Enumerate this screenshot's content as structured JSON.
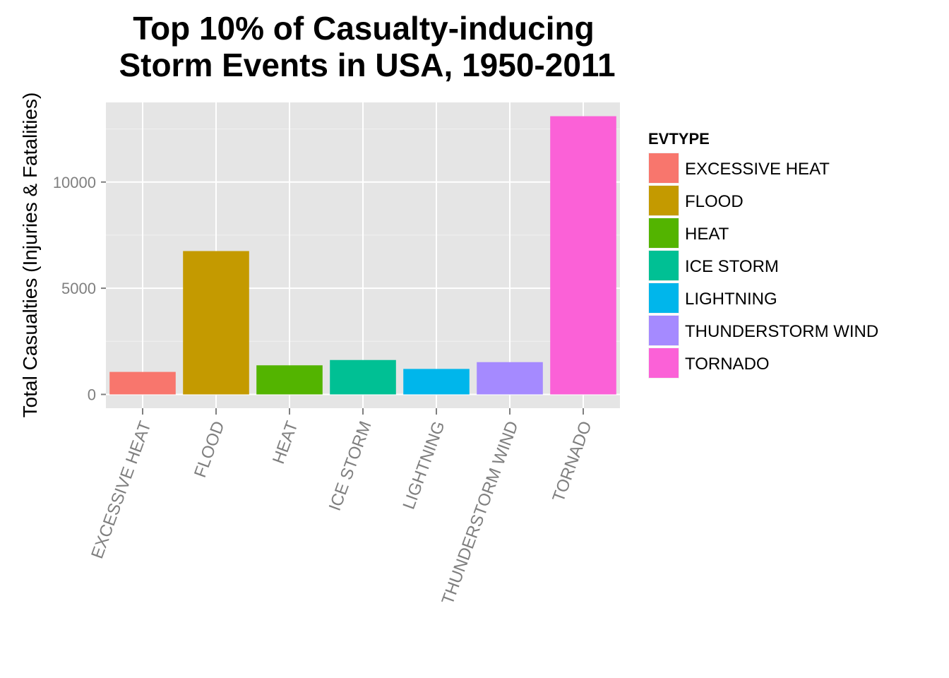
{
  "chart_data": {
    "type": "bar",
    "title_lines": [
      "Top 10% of Casualty-inducing",
      "Storm Events in USA, 1950-2011"
    ],
    "xlabel": "",
    "ylabel": "Total Casualties (Injuries & Fatalities)",
    "categories": [
      "EXCESSIVE HEAT",
      "FLOOD",
      "HEAT",
      "ICE STORM",
      "LIGHTNING",
      "THUNDERSTORM WIND",
      "TORNADO"
    ],
    "values": [
      1060,
      6750,
      1370,
      1620,
      1200,
      1520,
      13100
    ],
    "colors": [
      "#F8766D",
      "#C49A00",
      "#53B400",
      "#00C094",
      "#00B6EB",
      "#A58AFF",
      "#FB61D7"
    ],
    "ylim": [
      -650,
      13750
    ],
    "yticks": [
      0,
      5000,
      10000
    ],
    "ytick_labels": [
      "0",
      "5000",
      "10000"
    ],
    "grid": true,
    "legend": {
      "title": "EVTYPE",
      "position": "right",
      "entries": [
        "EXCESSIVE HEAT",
        "FLOOD",
        "HEAT",
        "ICE STORM",
        "LIGHTNING",
        "THUNDERSTORM WIND",
        "TORNADO"
      ]
    }
  }
}
